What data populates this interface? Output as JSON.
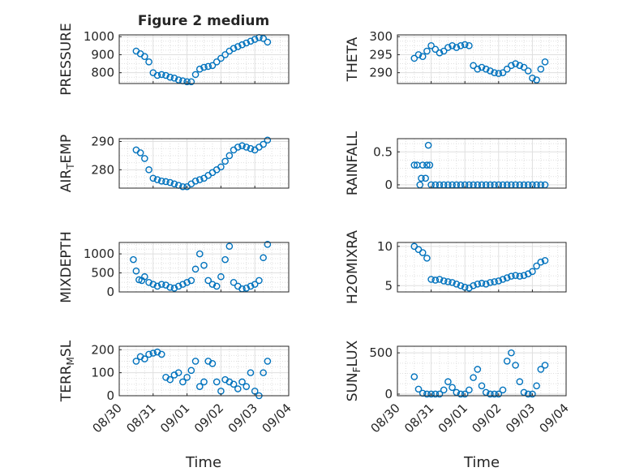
{
  "figure": {
    "title": "Figure 2 medium",
    "xlabel_left": "Time",
    "xlabel_right": "Time",
    "date_ticks": [
      "08/30",
      "08/31",
      "09/01",
      "09/02",
      "09/03",
      "09/04"
    ],
    "marker_color": "#0072BD",
    "axis_color": "#262626",
    "grid_color": "#dfdfdf"
  },
  "chart_data": [
    {
      "type": "scatter",
      "ylabel": "PRESSURE",
      "ylim": [
        740,
        1010
      ],
      "yticks": [
        800,
        900,
        1000
      ],
      "ytick_labels": [
        "800",
        "900",
        "1000"
      ],
      "x": [
        "08/30 12:00",
        "08/30 15:00",
        "08/30 18:00",
        "08/30 21:00",
        "08/31 00:00",
        "08/31 03:00",
        "08/31 06:00",
        "08/31 09:00",
        "08/31 12:00",
        "08/31 15:00",
        "08/31 18:00",
        "08/31 21:00",
        "09/01 00:00",
        "09/01 03:00",
        "09/01 06:00",
        "09/01 09:00",
        "09/01 12:00",
        "09/01 15:00",
        "09/01 18:00",
        "09/01 21:00",
        "09/02 00:00",
        "09/02 03:00",
        "09/02 06:00",
        "09/02 09:00",
        "09/02 12:00",
        "09/02 15:00",
        "09/02 18:00",
        "09/02 21:00",
        "09/03 00:00",
        "09/03 03:00",
        "09/03 06:00",
        "09/03 09:00"
      ],
      "y": [
        920,
        905,
        890,
        860,
        800,
        785,
        790,
        785,
        775,
        770,
        760,
        755,
        750,
        750,
        790,
        820,
        830,
        835,
        840,
        860,
        880,
        900,
        920,
        935,
        945,
        955,
        965,
        975,
        985,
        995,
        990,
        970
      ]
    },
    {
      "type": "scatter",
      "ylabel": "THETA",
      "ylim": [
        287,
        300.5
      ],
      "yticks": [
        290,
        295,
        300
      ],
      "ytick_labels": [
        "290",
        "295",
        "300"
      ],
      "x": [
        "08/30 12:00",
        "08/30 15:00",
        "08/30 18:00",
        "08/30 21:00",
        "08/31 00:00",
        "08/31 03:00",
        "08/31 06:00",
        "08/31 09:00",
        "08/31 12:00",
        "08/31 15:00",
        "08/31 18:00",
        "08/31 21:00",
        "09/01 00:00",
        "09/01 03:00",
        "09/01 06:00",
        "09/01 09:00",
        "09/01 12:00",
        "09/01 15:00",
        "09/01 18:00",
        "09/01 21:00",
        "09/02 00:00",
        "09/02 03:00",
        "09/02 06:00",
        "09/02 09:00",
        "09/02 12:00",
        "09/02 15:00",
        "09/02 18:00",
        "09/02 21:00",
        "09/03 00:00",
        "09/03 03:00",
        "09/03 06:00",
        "09/03 09:00"
      ],
      "y": [
        294,
        295,
        294.5,
        296,
        297.5,
        296.5,
        295.5,
        296,
        297,
        297.5,
        297,
        297.5,
        297.8,
        297.5,
        292,
        291,
        291.5,
        291,
        290.5,
        290,
        289.8,
        290,
        291,
        292,
        292.5,
        292,
        291.5,
        290.5,
        288.5,
        288,
        291,
        293
      ]
    },
    {
      "type": "scatter",
      "ylabel": "AIR_TEMP",
      "ylabel_main": "AIR",
      "ylabel_sub": "T",
      "ylabel_rest": "EMP",
      "ylim": [
        273.5,
        291
      ],
      "yticks": [
        280,
        290
      ],
      "ytick_labels": [
        "280",
        "290"
      ],
      "x": [
        "08/30 12:00",
        "08/30 15:00",
        "08/30 18:00",
        "08/30 21:00",
        "08/31 00:00",
        "08/31 03:00",
        "08/31 06:00",
        "08/31 09:00",
        "08/31 12:00",
        "08/31 15:00",
        "08/31 18:00",
        "08/31 21:00",
        "09/01 00:00",
        "09/01 03:00",
        "09/01 06:00",
        "09/01 09:00",
        "09/01 12:00",
        "09/01 15:00",
        "09/01 18:00",
        "09/01 21:00",
        "09/02 00:00",
        "09/02 03:00",
        "09/02 06:00",
        "09/02 09:00",
        "09/02 12:00",
        "09/02 15:00",
        "09/02 18:00",
        "09/02 21:00",
        "09/03 00:00",
        "09/03 03:00",
        "09/03 06:00",
        "09/03 09:00"
      ],
      "y": [
        287,
        286,
        284,
        280,
        277,
        276.5,
        276,
        275.8,
        275.5,
        275,
        274.5,
        274,
        274,
        275,
        276,
        276.5,
        277,
        278,
        279,
        280,
        281,
        283,
        285,
        287,
        288,
        288.5,
        288,
        287.5,
        287,
        288,
        289,
        290.5
      ]
    },
    {
      "type": "scatter",
      "ylabel": "RAINFALL",
      "ylim": [
        -0.05,
        0.7
      ],
      "yticks": [
        0,
        0.5
      ],
      "ytick_labels": [
        "0",
        "0.5"
      ],
      "x": [
        "08/30 12:00",
        "08/30 14:00",
        "08/30 16:00",
        "08/30 17:00",
        "08/30 18:00",
        "08/30 20:00",
        "08/30 21:00",
        "08/30 22:00",
        "08/30 23:00",
        "08/31 00:00",
        "08/31 03:00",
        "08/31 06:00",
        "08/31 09:00",
        "08/31 12:00",
        "08/31 15:00",
        "08/31 18:00",
        "08/31 21:00",
        "09/01 00:00",
        "09/01 03:00",
        "09/01 06:00",
        "09/01 09:00",
        "09/01 12:00",
        "09/01 15:00",
        "09/01 18:00",
        "09/01 21:00",
        "09/02 00:00",
        "09/02 03:00",
        "09/02 06:00",
        "09/02 09:00",
        "09/02 12:00",
        "09/02 15:00",
        "09/02 18:00",
        "09/02 21:00",
        "09/03 00:00",
        "09/03 03:00",
        "09/03 06:00",
        "09/03 09:00"
      ],
      "y": [
        0.3,
        0.3,
        0.0,
        0.1,
        0.3,
        0.1,
        0.3,
        0.6,
        0.3,
        0.0,
        0,
        0,
        0,
        0,
        0,
        0,
        0,
        0,
        0,
        0,
        0,
        0,
        0,
        0,
        0,
        0,
        0,
        0,
        0,
        0,
        0,
        0,
        0,
        0,
        0,
        0,
        0
      ]
    },
    {
      "type": "scatter",
      "ylabel": "MIXDEPTH",
      "ylim": [
        0,
        1300
      ],
      "yticks": [
        0,
        500,
        1000
      ],
      "ytick_labels": [
        "0",
        "500",
        "1000"
      ],
      "x": [
        "08/30 10:00",
        "08/30 12:00",
        "08/30 14:00",
        "08/30 16:00",
        "08/30 18:00",
        "08/30 21:00",
        "08/31 00:00",
        "08/31 03:00",
        "08/31 06:00",
        "08/31 09:00",
        "08/31 12:00",
        "08/31 15:00",
        "08/31 18:00",
        "08/31 21:00",
        "09/01 00:00",
        "09/01 03:00",
        "09/01 06:00",
        "09/01 09:00",
        "09/01 12:00",
        "09/01 15:00",
        "09/01 18:00",
        "09/01 21:00",
        "09/02 00:00",
        "09/02 03:00",
        "09/02 06:00",
        "09/02 09:00",
        "09/02 12:00",
        "09/02 15:00",
        "09/02 18:00",
        "09/02 21:00",
        "09/03 00:00",
        "09/03 03:00",
        "09/03 06:00",
        "09/03 09:00"
      ],
      "y": [
        850,
        550,
        320,
        300,
        400,
        250,
        200,
        150,
        200,
        180,
        120,
        100,
        150,
        200,
        250,
        300,
        600,
        1000,
        700,
        300,
        200,
        150,
        400,
        850,
        1200,
        250,
        150,
        80,
        100,
        150,
        200,
        300,
        900,
        1250
      ]
    },
    {
      "type": "scatter",
      "ylabel": "H2OMIXRA",
      "ylim": [
        4.2,
        10.5
      ],
      "yticks": [
        5,
        10
      ],
      "ytick_labels": [
        "5",
        "10"
      ],
      "x": [
        "08/30 12:00",
        "08/30 15:00",
        "08/30 18:00",
        "08/30 21:00",
        "08/31 00:00",
        "08/31 03:00",
        "08/31 06:00",
        "08/31 09:00",
        "08/31 12:00",
        "08/31 15:00",
        "08/31 18:00",
        "08/31 21:00",
        "09/01 00:00",
        "09/01 03:00",
        "09/01 06:00",
        "09/01 09:00",
        "09/01 12:00",
        "09/01 15:00",
        "09/01 18:00",
        "09/01 21:00",
        "09/02 00:00",
        "09/02 03:00",
        "09/02 06:00",
        "09/02 09:00",
        "09/02 12:00",
        "09/02 15:00",
        "09/02 18:00",
        "09/02 21:00",
        "09/03 00:00",
        "09/03 03:00",
        "09/03 06:00",
        "09/03 09:00"
      ],
      "y": [
        10,
        9.6,
        9.2,
        8.5,
        5.8,
        5.7,
        5.8,
        5.6,
        5.5,
        5.4,
        5.2,
        5.0,
        4.8,
        4.7,
        5.0,
        5.2,
        5.3,
        5.2,
        5.4,
        5.5,
        5.6,
        5.8,
        6.0,
        6.2,
        6.3,
        6.2,
        6.3,
        6.5,
        6.8,
        7.5,
        8.0,
        8.2
      ]
    },
    {
      "type": "scatter",
      "ylabel": "TERR_MSL",
      "ylabel_main": "TERR",
      "ylabel_sub": "M",
      "ylabel_rest": "SL",
      "ylim": [
        0,
        215
      ],
      "yticks": [
        0,
        100,
        200
      ],
      "ytick_labels": [
        "0",
        "100",
        "200"
      ],
      "x": [
        "08/30 12:00",
        "08/30 15:00",
        "08/30 18:00",
        "08/30 21:00",
        "08/31 00:00",
        "08/31 03:00",
        "08/31 06:00",
        "08/31 09:00",
        "08/31 12:00",
        "08/31 15:00",
        "08/31 18:00",
        "08/31 21:00",
        "09/01 00:00",
        "09/01 03:00",
        "09/01 06:00",
        "09/01 09:00",
        "09/01 12:00",
        "09/01 15:00",
        "09/01 18:00",
        "09/01 21:00",
        "09/02 00:00",
        "09/02 03:00",
        "09/02 06:00",
        "09/02 09:00",
        "09/02 12:00",
        "09/02 15:00",
        "09/02 18:00",
        "09/02 21:00",
        "09/03 00:00",
        "09/03 03:00",
        "09/03 06:00",
        "09/03 09:00"
      ],
      "y": [
        150,
        170,
        160,
        180,
        185,
        190,
        180,
        80,
        70,
        90,
        100,
        60,
        80,
        110,
        150,
        40,
        60,
        150,
        140,
        60,
        20,
        70,
        60,
        50,
        30,
        60,
        40,
        100,
        20,
        0,
        100,
        150
      ]
    },
    {
      "type": "scatter",
      "ylabel": "SUN_FLUX",
      "ylabel_main": "SUN",
      "ylabel_sub": "F",
      "ylabel_rest": "LUX",
      "ylim": [
        -20,
        580
      ],
      "yticks": [
        0,
        500
      ],
      "ytick_labels": [
        "0",
        "500"
      ],
      "x": [
        "08/30 12:00",
        "08/30 15:00",
        "08/30 18:00",
        "08/30 21:00",
        "08/31 00:00",
        "08/31 03:00",
        "08/31 06:00",
        "08/31 09:00",
        "08/31 12:00",
        "08/31 15:00",
        "08/31 18:00",
        "08/31 21:00",
        "09/01 00:00",
        "09/01 03:00",
        "09/01 06:00",
        "09/01 09:00",
        "09/01 12:00",
        "09/01 15:00",
        "09/01 18:00",
        "09/01 21:00",
        "09/02 00:00",
        "09/02 03:00",
        "09/02 06:00",
        "09/02 09:00",
        "09/02 12:00",
        "09/02 15:00",
        "09/02 18:00",
        "09/02 21:00",
        "09/03 00:00",
        "09/03 03:00",
        "09/03 06:00",
        "09/03 09:00"
      ],
      "y": [
        210,
        60,
        10,
        0,
        0,
        0,
        0,
        50,
        150,
        80,
        20,
        0,
        0,
        50,
        200,
        300,
        100,
        20,
        0,
        0,
        0,
        50,
        400,
        500,
        350,
        150,
        20,
        0,
        0,
        100,
        300,
        350
      ]
    }
  ]
}
